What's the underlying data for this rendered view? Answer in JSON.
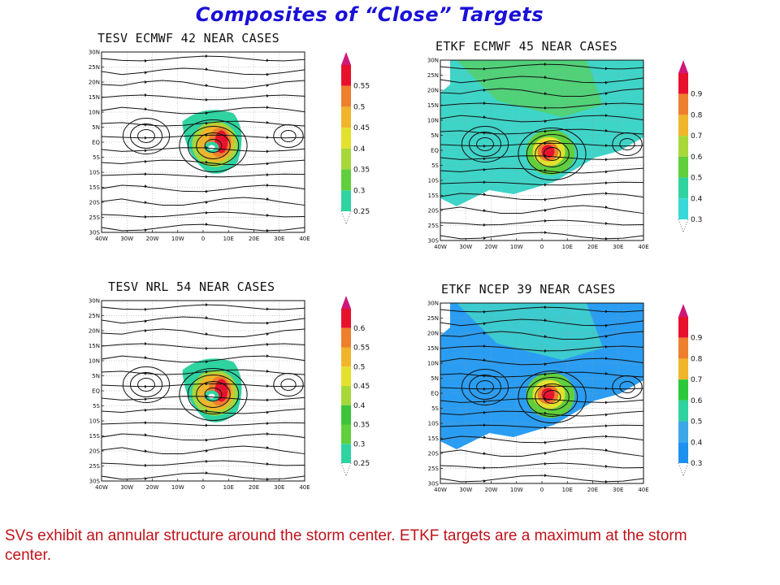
{
  "title": "Composites of “Close” Targets",
  "caption": "SVs exhibit an annular structure around the storm center. ETKF targets are a maximum at the storm center.",
  "axes": {
    "lat_labels": [
      "30N",
      "25N",
      "20N",
      "15N",
      "10N",
      "5N",
      "EQ",
      "5S",
      "10S",
      "15S",
      "20S",
      "25S",
      "30S"
    ],
    "lon_labels": [
      "40W",
      "30W",
      "20W",
      "10W",
      "0",
      "10E",
      "20E",
      "30E",
      "40E"
    ]
  },
  "panels": [
    {
      "id": "p1",
      "title": "TESV ECMWF 42 NEAR CASES",
      "colorbar": {
        "labels": [
          "0.55",
          "0.5",
          "0.45",
          "0.4",
          "0.35",
          "0.3",
          "0.25"
        ],
        "colors": [
          "#e8112d",
          "#ee7f2d",
          "#f0b52a",
          "#e4e12d",
          "#a6d83a",
          "#5fcf3c",
          "#2ed3a0"
        ]
      },
      "field": "annular"
    },
    {
      "id": "p2",
      "title": "ETKF ECMWF 45 NEAR CASES",
      "colorbar": {
        "labels": [
          "0.9",
          "0.8",
          "0.7",
          "0.6",
          "0.5",
          "0.4",
          "0.3"
        ],
        "colors": [
          "#e8112d",
          "#ee7f2d",
          "#f0b52a",
          "#a6d83a",
          "#5fcf3c",
          "#2ed3a0",
          "#39d8d8"
        ]
      },
      "field": "center"
    },
    {
      "id": "p3",
      "title": "TESV NRL 54 NEAR CASES",
      "colorbar": {
        "labels": [
          "0.6",
          "0.55",
          "0.5",
          "0.45",
          "0.4",
          "0.35",
          "0.3",
          "0.25"
        ],
        "colors": [
          "#e8112d",
          "#ee7f2d",
          "#f0b52a",
          "#e4e12d",
          "#a6d83a",
          "#3cc53a",
          "#5fcf3c",
          "#2ed3a0"
        ]
      },
      "field": "annular"
    },
    {
      "id": "p4",
      "title": "ETKF NCEP 39 NEAR CASES",
      "colorbar": {
        "labels": [
          "0.9",
          "0.8",
          "0.7",
          "0.6",
          "0.5",
          "0.4",
          "0.3"
        ],
        "colors": [
          "#e8112d",
          "#ee7f2d",
          "#f0b52a",
          "#2bc93a",
          "#2ed3a0",
          "#3aa8e8",
          "#1e90f0"
        ]
      },
      "field": "center_blue"
    }
  ]
}
